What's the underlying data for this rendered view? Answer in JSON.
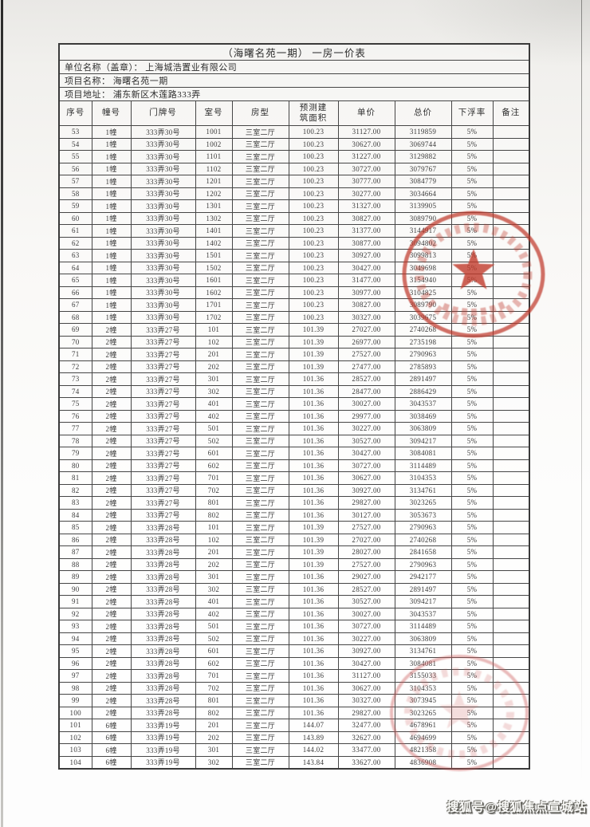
{
  "document": {
    "title": "（海曙名苑一期） 一房一价表",
    "unit_line": "单位名称（盖章）： 上海城浩置业有限公司",
    "project_name_line": "项目名称： 海曙名苑一期",
    "project_address_line": "项目地址： 浦东新区木莲路333弄"
  },
  "table": {
    "headers": [
      "序号",
      "幢号",
      "门牌号",
      "室号",
      "房型",
      "预测建筑面积",
      "单价",
      "总价",
      "下浮率",
      "备注"
    ],
    "rows": [
      [
        "53",
        "1幢",
        "333弄30号",
        "1001",
        "三室二厅",
        "100.23",
        "31127.00",
        "3119859",
        "5%",
        ""
      ],
      [
        "54",
        "1幢",
        "333弄30号",
        "1002",
        "三室二厅",
        "100.23",
        "30627.00",
        "3069744",
        "5%",
        ""
      ],
      [
        "55",
        "1幢",
        "333弄30号",
        "1101",
        "三室二厅",
        "100.23",
        "31227.00",
        "3129882",
        "5%",
        ""
      ],
      [
        "56",
        "1幢",
        "333弄30号",
        "1102",
        "三室二厅",
        "100.23",
        "30727.00",
        "3079767",
        "5%",
        ""
      ],
      [
        "57",
        "1幢",
        "333弄30号",
        "1201",
        "三室二厅",
        "100.23",
        "30777.00",
        "3084779",
        "5%",
        ""
      ],
      [
        "58",
        "1幢",
        "333弄30号",
        "1202",
        "三室二厅",
        "100.23",
        "30277.00",
        "3034664",
        "5%",
        ""
      ],
      [
        "59",
        "1幢",
        "333弄30号",
        "1301",
        "三室二厅",
        "100.23",
        "31327.00",
        "3139905",
        "5%",
        ""
      ],
      [
        "60",
        "1幢",
        "333弄30号",
        "1302",
        "三室二厅",
        "100.23",
        "30827.00",
        "3089790",
        "5%",
        ""
      ],
      [
        "61",
        "1幢",
        "333弄30号",
        "1401",
        "三室二厅",
        "100.23",
        "31377.00",
        "3144917",
        "5%",
        ""
      ],
      [
        "62",
        "1幢",
        "333弄30号",
        "1402",
        "三室二厅",
        "100.23",
        "30877.00",
        "3094802",
        "5%",
        ""
      ],
      [
        "63",
        "1幢",
        "333弄30号",
        "1501",
        "三室二厅",
        "100.23",
        "30927.00",
        "3099813",
        "5%",
        ""
      ],
      [
        "64",
        "1幢",
        "333弄30号",
        "1502",
        "三室二厅",
        "100.23",
        "30427.00",
        "3049698",
        "5%",
        ""
      ],
      [
        "65",
        "1幢",
        "333弄30号",
        "1601",
        "三室二厅",
        "100.23",
        "31477.00",
        "3154940",
        "5%",
        ""
      ],
      [
        "66",
        "1幢",
        "333弄30号",
        "1602",
        "三室二厅",
        "100.23",
        "30977.00",
        "3104825",
        "5%",
        ""
      ],
      [
        "67",
        "1幢",
        "333弄30号",
        "1701",
        "三室二厅",
        "100.23",
        "30827.00",
        "3089790",
        "5%",
        ""
      ],
      [
        "68",
        "1幢",
        "333弄30号",
        "1702",
        "三室二厅",
        "100.23",
        "30327.00",
        "3039675",
        "5%",
        ""
      ],
      [
        "69",
        "2幢",
        "333弄27号",
        "101",
        "三室二厅",
        "101.39",
        "27027.00",
        "2740268",
        "5%",
        ""
      ],
      [
        "70",
        "2幢",
        "333弄27号",
        "102",
        "三室二厅",
        "101.39",
        "26977.00",
        "2735198",
        "5%",
        ""
      ],
      [
        "71",
        "2幢",
        "333弄27号",
        "201",
        "三室二厅",
        "101.39",
        "27527.00",
        "2790963",
        "5%",
        ""
      ],
      [
        "72",
        "2幢",
        "333弄27号",
        "202",
        "三室二厅",
        "101.39",
        "27477.00",
        "2785893",
        "5%",
        ""
      ],
      [
        "73",
        "2幢",
        "333弄27号",
        "301",
        "三室二厅",
        "101.36",
        "28527.00",
        "2891497",
        "5%",
        ""
      ],
      [
        "74",
        "2幢",
        "333弄27号",
        "302",
        "三室二厅",
        "101.36",
        "28477.00",
        "2886429",
        "5%",
        ""
      ],
      [
        "75",
        "2幢",
        "333弄27号",
        "401",
        "三室二厅",
        "101.36",
        "30027.00",
        "3043537",
        "5%",
        ""
      ],
      [
        "76",
        "2幢",
        "333弄27号",
        "402",
        "三室二厅",
        "101.36",
        "29977.00",
        "3038469",
        "5%",
        ""
      ],
      [
        "77",
        "2幢",
        "333弄27号",
        "501",
        "三室二厅",
        "101.36",
        "30227.00",
        "3063809",
        "5%",
        ""
      ],
      [
        "78",
        "2幢",
        "333弄27号",
        "502",
        "三室二厅",
        "101.36",
        "30527.00",
        "3094217",
        "5%",
        ""
      ],
      [
        "79",
        "2幢",
        "333弄27号",
        "601",
        "三室二厅",
        "101.36",
        "30427.00",
        "3084081",
        "5%",
        ""
      ],
      [
        "80",
        "2幢",
        "333弄27号",
        "602",
        "三室二厅",
        "101.36",
        "30727.00",
        "3114489",
        "5%",
        ""
      ],
      [
        "81",
        "2幢",
        "333弄27号",
        "701",
        "三室二厅",
        "101.36",
        "30627.00",
        "3104353",
        "5%",
        ""
      ],
      [
        "82",
        "2幢",
        "333弄27号",
        "702",
        "三室二厅",
        "101.36",
        "30927.00",
        "3134761",
        "5%",
        ""
      ],
      [
        "83",
        "2幢",
        "333弄27号",
        "801",
        "三室二厅",
        "101.36",
        "29827.00",
        "3023265",
        "5%",
        ""
      ],
      [
        "84",
        "2幢",
        "333弄27号",
        "802",
        "三室二厅",
        "101.36",
        "30127.00",
        "3053673",
        "5%",
        ""
      ],
      [
        "85",
        "2幢",
        "333弄28号",
        "101",
        "三室二厅",
        "101.39",
        "27527.00",
        "2790963",
        "5%",
        ""
      ],
      [
        "86",
        "2幢",
        "333弄28号",
        "102",
        "三室二厅",
        "101.39",
        "27027.00",
        "2740268",
        "5%",
        ""
      ],
      [
        "87",
        "2幢",
        "333弄28号",
        "201",
        "三室二厅",
        "101.39",
        "28027.00",
        "2841658",
        "5%",
        ""
      ],
      [
        "88",
        "2幢",
        "333弄28号",
        "202",
        "三室二厅",
        "101.39",
        "27527.00",
        "2790963",
        "5%",
        ""
      ],
      [
        "89",
        "2幢",
        "333弄28号",
        "301",
        "三室二厅",
        "101.36",
        "29027.00",
        "2942177",
        "5%",
        ""
      ],
      [
        "90",
        "2幢",
        "333弄28号",
        "302",
        "三室二厅",
        "101.36",
        "28527.00",
        "2891497",
        "5%",
        ""
      ],
      [
        "91",
        "2幢",
        "333弄28号",
        "401",
        "三室二厅",
        "101.36",
        "30527.00",
        "3094217",
        "5%",
        ""
      ],
      [
        "92",
        "2幢",
        "333弄28号",
        "402",
        "三室二厅",
        "101.36",
        "30027.00",
        "3043537",
        "5%",
        ""
      ],
      [
        "93",
        "2幢",
        "333弄28号",
        "501",
        "三室二厅",
        "101.36",
        "30727.00",
        "3114489",
        "5%",
        ""
      ],
      [
        "94",
        "2幢",
        "333弄28号",
        "502",
        "三室二厅",
        "101.36",
        "30227.00",
        "3063809",
        "5%",
        ""
      ],
      [
        "95",
        "2幢",
        "333弄28号",
        "601",
        "三室二厅",
        "101.36",
        "30927.00",
        "3134761",
        "5%",
        ""
      ],
      [
        "96",
        "2幢",
        "333弄28号",
        "602",
        "三室二厅",
        "101.36",
        "30427.00",
        "3084081",
        "5%",
        ""
      ],
      [
        "97",
        "2幢",
        "333弄28号",
        "701",
        "三室二厅",
        "101.36",
        "31127.00",
        "3155033",
        "5%",
        ""
      ],
      [
        "98",
        "2幢",
        "333弄28号",
        "702",
        "三室二厅",
        "101.36",
        "30627.00",
        "3104353",
        "5%",
        ""
      ],
      [
        "99",
        "2幢",
        "333弄28号",
        "801",
        "三室二厅",
        "101.36",
        "30327.00",
        "3073945",
        "5%",
        ""
      ],
      [
        "100",
        "2幢",
        "333弄28号",
        "802",
        "三室二厅",
        "101.36",
        "29827.00",
        "3023265",
        "5%",
        ""
      ],
      [
        "101",
        "6幢",
        "333弄19号",
        "201",
        "三室二厅",
        "144.07",
        "32477.00",
        "4678961",
        "5%",
        ""
      ],
      [
        "102",
        "6幢",
        "333弄19号",
        "202",
        "三室二厅",
        "143.89",
        "32627.00",
        "4694699",
        "5%",
        ""
      ],
      [
        "103",
        "6幢",
        "333弄19号",
        "301",
        "三室二厅",
        "144.02",
        "33477.00",
        "4821358",
        "5%",
        ""
      ],
      [
        "104",
        "6幢",
        "333弄19号",
        "302",
        "三室二厅",
        "143.84",
        "33627.00",
        "4836908",
        "5%",
        ""
      ]
    ]
  },
  "stamps": {
    "top_seal": "red-circular-seal-with-star",
    "bottom_seal": "faint-red-circular-seal",
    "seal_color": "#c0392b"
  },
  "watermark": "搜狐号@搜狐焦点宣城站"
}
